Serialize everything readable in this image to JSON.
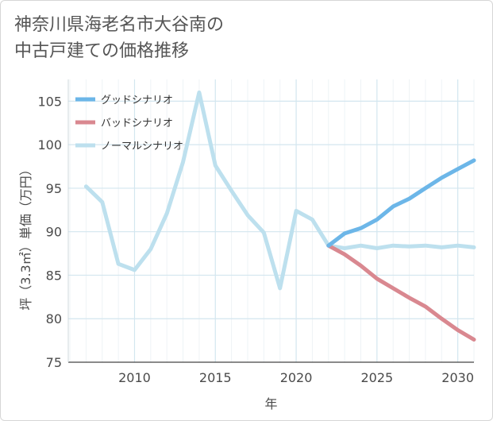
{
  "chart_data": {
    "type": "line",
    "title_lines": [
      "神奈川県海老名市大谷南の",
      "中古戸建ての価格推移"
    ],
    "xlabel": "年",
    "ylabel": "坪（3.3㎡）単価（万円）",
    "xlim": [
      2005.9,
      2031
    ],
    "ylim": [
      75,
      107.5
    ],
    "xticks": [
      2010,
      2015,
      2020,
      2025,
      2030
    ],
    "yticks": [
      75,
      80,
      85,
      90,
      95,
      100,
      105
    ],
    "legend_position": "top-left",
    "series": [
      {
        "name": "グッドシナリオ",
        "color": "#6cb6e8",
        "x": [
          2022,
          2023,
          2024,
          2025,
          2026,
          2027,
          2028,
          2029,
          2030,
          2031
        ],
        "values": [
          88.4,
          89.8,
          90.4,
          91.4,
          92.9,
          93.8,
          95.0,
          96.2,
          97.2,
          98.2
        ]
      },
      {
        "name": "バッドシナリオ",
        "color": "#d98890",
        "x": [
          2022,
          2023,
          2024,
          2025,
          2026,
          2027,
          2028,
          2029,
          2030,
          2031
        ],
        "values": [
          88.4,
          87.4,
          86.1,
          84.6,
          83.5,
          82.4,
          81.4,
          80.0,
          78.7,
          77.6
        ]
      },
      {
        "name": "ノーマルシナリオ",
        "color": "#bde0ee",
        "x": [
          2007,
          2008,
          2009,
          2010,
          2011,
          2012,
          2013,
          2014,
          2015,
          2016,
          2017,
          2018,
          2019,
          2020,
          2021,
          2022,
          2023,
          2024,
          2025,
          2026,
          2027,
          2028,
          2029,
          2030,
          2031
        ],
        "values": [
          95.2,
          93.4,
          86.3,
          85.6,
          88.0,
          92.1,
          98.0,
          106.0,
          97.6,
          94.7,
          91.9,
          89.9,
          83.5,
          92.4,
          91.4,
          88.4,
          88.1,
          88.4,
          88.1,
          88.4,
          88.3,
          88.4,
          88.2,
          88.4,
          88.2
        ]
      }
    ]
  }
}
